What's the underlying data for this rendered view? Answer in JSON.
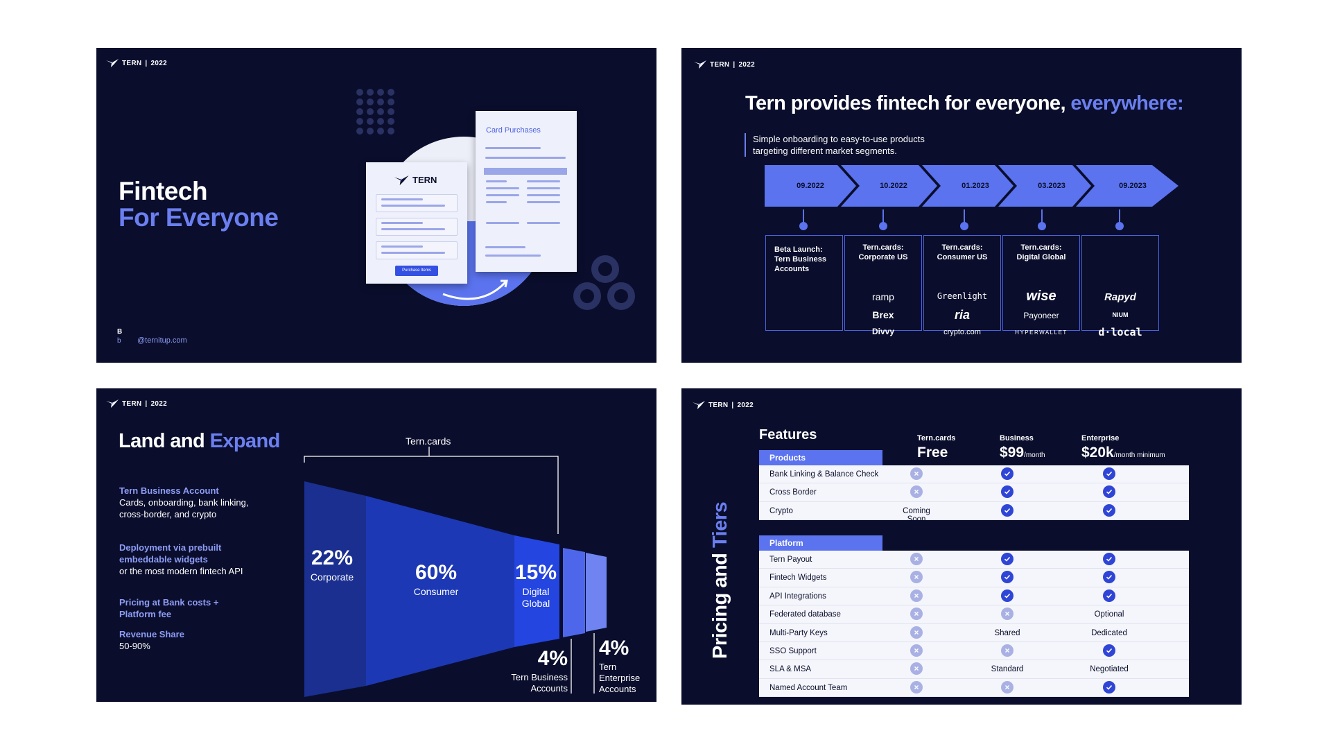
{
  "logo": {
    "text": "TERN",
    "year": "2022"
  },
  "slide1": {
    "title_line1": "Fintech",
    "title_line2": "For Everyone",
    "mark": "B",
    "mark2": "b",
    "email": "@ternitup.com",
    "card_title": "Card Purchases",
    "front_logo": "TERN",
    "button": "Purchase Items"
  },
  "slide2": {
    "title_main": "Tern provides fintech for everyone,",
    "title_accent": "everywhere:",
    "subtitle_l1": "Simple onboarding to easy-to-use products",
    "subtitle_l2": "targeting different market segments.",
    "milestones": [
      {
        "date": "09.2022",
        "label_l1": "Beta Launch:",
        "label_l2": "Tern Business",
        "label_l3": "Accounts",
        "brands": []
      },
      {
        "date": "10.2022",
        "label_l1": "Tern.cards:",
        "label_l2": "Corporate US",
        "label_l3": "",
        "brands": [
          "ramp",
          "Brex",
          "Divvy"
        ]
      },
      {
        "date": "01.2023",
        "label_l1": "Tern.cards:",
        "label_l2": "Consumer US",
        "label_l3": "",
        "brands": [
          "Greenlight",
          "ria",
          "crypto.com"
        ]
      },
      {
        "date": "03.2023",
        "label_l1": "Tern.cards:",
        "label_l2": "Digital Global",
        "label_l3": "",
        "brands": [
          "wise",
          "Payoneer",
          "HYPERWALLET"
        ]
      },
      {
        "date": "09.2023",
        "label_l1": "",
        "label_l2": "",
        "label_l3": "",
        "brands": [
          "Rapyd",
          "NIUM",
          "d·local"
        ]
      }
    ]
  },
  "slide3": {
    "title_main": "Land and",
    "title_accent": "Expand",
    "bracket_label": "Tern.cards",
    "items": [
      {
        "head": "Tern Business Account",
        "body": "Cards, onboarding, bank linking, cross-border, and crypto"
      },
      {
        "head": "Deployment via prebuilt embeddable widgets",
        "body": "or the most modern fintech API"
      },
      {
        "head": "Pricing at Bank costs + Platform fee",
        "body": ""
      },
      {
        "head": "Revenue Share",
        "body": "50-90%"
      }
    ],
    "segments": [
      {
        "pct": "22%",
        "label_l1": "Corporate",
        "label_l2": "",
        "label_l3": ""
      },
      {
        "pct": "60%",
        "label_l1": "Consumer",
        "label_l2": "",
        "label_l3": ""
      },
      {
        "pct": "15%",
        "label_l1": "Digital",
        "label_l2": "Global",
        "label_l3": ""
      },
      {
        "pct": "4%",
        "label_l1": "Tern Business",
        "label_l2": "Accounts",
        "label_l3": ""
      },
      {
        "pct": "4%",
        "label_l1": "Tern",
        "label_l2": "Enterprise",
        "label_l3": "Accounts"
      }
    ]
  },
  "slide4": {
    "side_title_main": "Pricing and",
    "side_title_accent": "Tiers",
    "features_label": "Features",
    "tiers": [
      {
        "name": "Tern.cards",
        "price": "Free",
        "unit": ""
      },
      {
        "name": "Business",
        "price": "$99",
        "unit": "/month"
      },
      {
        "name": "Enterprise",
        "price": "$20k",
        "unit": "/month minimum"
      }
    ],
    "groups": [
      {
        "title": "Products",
        "rows": [
          {
            "feature": "Bank Linking & Balance Check",
            "c": [
              "no",
              "yes",
              "yes"
            ]
          },
          {
            "feature": "Cross Border",
            "c": [
              "no",
              "yes",
              "yes"
            ]
          },
          {
            "feature": "Crypto",
            "c": [
              "Coming Soon",
              "yes",
              "yes"
            ]
          }
        ]
      },
      {
        "title": "Platform",
        "rows": [
          {
            "feature": "Tern Payout",
            "c": [
              "no",
              "yes",
              "yes"
            ]
          },
          {
            "feature": "Fintech Widgets",
            "c": [
              "no",
              "yes",
              "yes"
            ]
          },
          {
            "feature": "API Integrations",
            "c": [
              "no",
              "yes",
              "yes"
            ]
          },
          {
            "feature": "Federated  database",
            "c": [
              "no",
              "no",
              "Optional"
            ]
          },
          {
            "feature": "Multi-Party Keys",
            "c": [
              "no",
              "Shared",
              "Dedicated"
            ]
          },
          {
            "feature": "SSO Support",
            "c": [
              "no",
              "no",
              "yes"
            ]
          },
          {
            "feature": "SLA & MSA",
            "c": [
              "no",
              "Standard",
              "Negotiated"
            ]
          },
          {
            "feature": "Named Account Team",
            "c": [
              "no",
              "no",
              "yes"
            ]
          }
        ]
      }
    ]
  },
  "colors": {
    "bg": "#0a0e2c",
    "accent": "#6b7ff0",
    "chevron": "#5b73ee",
    "check": "#2f45d6"
  }
}
